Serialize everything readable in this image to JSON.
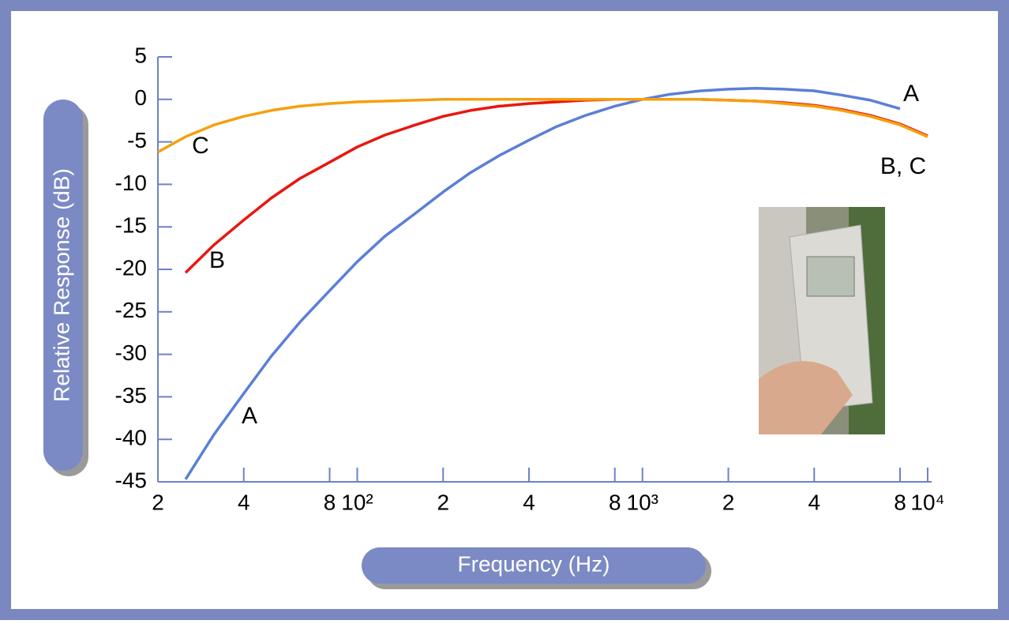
{
  "chart_data": {
    "type": "line",
    "xlabel": "Frequency (Hz)",
    "ylabel": "Relative Response (dB)",
    "log_x": true,
    "x": [
      20,
      25,
      31.5,
      40,
      50,
      63,
      80,
      100,
      125,
      160,
      200,
      250,
      315,
      400,
      500,
      630,
      800,
      1000,
      1250,
      1600,
      2000,
      2500,
      3150,
      4000,
      5000,
      6300,
      8000,
      10000
    ],
    "series": [
      {
        "name": "A",
        "color": "#5b7fd6",
        "values": [
          null,
          -44.7,
          -39.4,
          -34.6,
          -30.2,
          -26.2,
          -22.5,
          -19.1,
          -16.1,
          -13.4,
          -10.9,
          -8.6,
          -6.6,
          -4.8,
          -3.2,
          -1.9,
          -0.8,
          0,
          0.6,
          1.0,
          1.2,
          1.3,
          1.2,
          1.0,
          0.5,
          -0.1,
          -1.1,
          null
        ]
      },
      {
        "name": "B",
        "color": "#e8170f",
        "values": [
          null,
          -20.4,
          -17.1,
          -14.2,
          -11.6,
          -9.3,
          -7.4,
          -5.6,
          -4.2,
          -3.0,
          -2.0,
          -1.3,
          -0.8,
          -0.5,
          -0.3,
          -0.1,
          0,
          0,
          0,
          0,
          -0.1,
          -0.2,
          -0.4,
          -0.7,
          -1.2,
          -1.9,
          -2.9,
          -4.3
        ]
      },
      {
        "name": "C",
        "color": "#f5a00f",
        "values": [
          -6.2,
          -4.4,
          -3.0,
          -2.0,
          -1.3,
          -0.8,
          -0.5,
          -0.3,
          -0.2,
          -0.1,
          0,
          0,
          0,
          0,
          0,
          0,
          0,
          0,
          0,
          0,
          -0.1,
          -0.2,
          -0.5,
          -0.8,
          -1.3,
          -2.0,
          -3.0,
          -4.4
        ]
      }
    ],
    "annotations": [
      "A",
      "B",
      "C",
      "A",
      "B, C"
    ],
    "xlim": [
      20,
      10000
    ],
    "xticks": [
      {
        "value": 20,
        "label": "2"
      },
      {
        "value": 40,
        "label": "4"
      },
      {
        "value": 80,
        "label": "8"
      },
      {
        "value": 100,
        "label": "10²"
      },
      {
        "value": 200,
        "label": "2"
      },
      {
        "value": 400,
        "label": "4"
      },
      {
        "value": 800,
        "label": "8"
      },
      {
        "value": 1000,
        "label": "10³"
      },
      {
        "value": 2000,
        "label": "2"
      },
      {
        "value": 4000,
        "label": "4"
      },
      {
        "value": 8000,
        "label": "8"
      },
      {
        "value": 10000,
        "label": "10⁴"
      }
    ],
    "ylim": [
      -45,
      5
    ],
    "yticks": [
      5,
      0,
      -5,
      -10,
      -15,
      -20,
      -25,
      -30,
      -35,
      -40,
      -45
    ],
    "axis_color": "#6d82c7"
  }
}
